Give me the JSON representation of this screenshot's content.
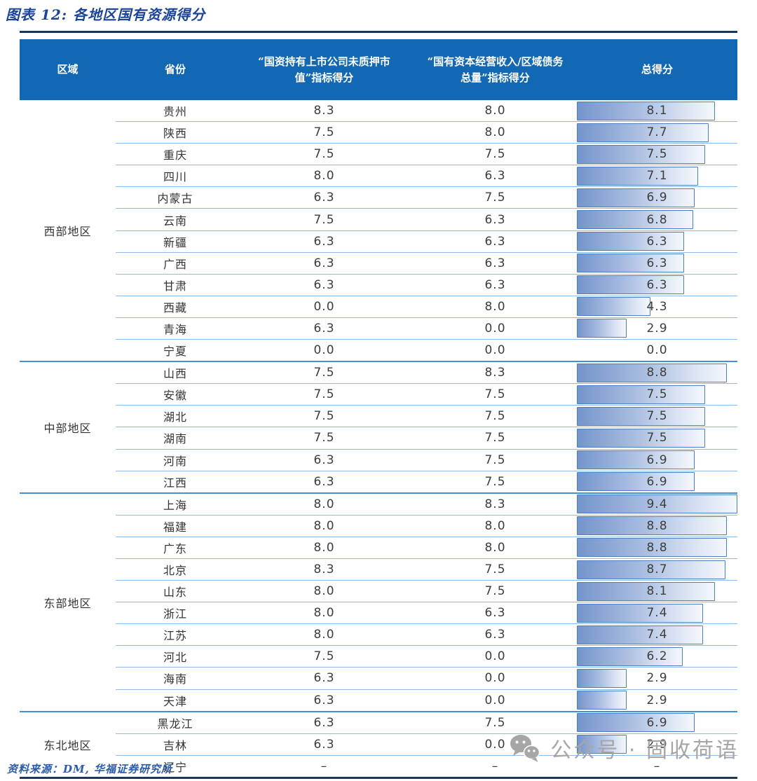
{
  "figure": {
    "title": "图表 12: 各地区国有资源得分",
    "source": "资料来源：DM, 华福证券研究所"
  },
  "table": {
    "headers": {
      "region": "区域",
      "province": "省份",
      "score1_lines": [
        "“国资持有上市公司未质押市",
        "值”指标得分"
      ],
      "score2_lines": [
        "“国有资本经营收入/区域债务",
        "总量”指标得分"
      ],
      "total": "总得分"
    }
  },
  "watermark": {
    "icon": "wechat-icon",
    "label": "公众号 · 固收荷语"
  },
  "colors": {
    "title": "#1B4396",
    "rule": "#17375E",
    "header_bg": "#1268B2",
    "header_text": "#FFFFFF",
    "group_line": "#4690D2",
    "row_line": "#8FBCE6",
    "bar_border": "#4D7DC2",
    "bar_gradient_start": "#7495CB",
    "bar_gradient_end": "#F4F7FC",
    "source_text": "#2A5CAA",
    "watermark": "#A6A6A6"
  },
  "chart_data": {
    "type": "table",
    "title": "图表 12: 各地区国有资源得分",
    "columns": [
      "区域",
      "省份",
      "“国资持有上市公司未质押市值”指标得分",
      "“国有资本经营收入/区域债务总量”指标得分",
      "总得分"
    ],
    "bar_column": "总得分",
    "score_max": 9.4,
    "groups": [
      {
        "region": "西部地区",
        "rows": [
          {
            "province": "贵州",
            "score1": "8.3",
            "score2": "8.0",
            "total": "8.1"
          },
          {
            "province": "陕西",
            "score1": "7.5",
            "score2": "8.0",
            "total": "7.7"
          },
          {
            "province": "重庆",
            "score1": "7.5",
            "score2": "7.5",
            "total": "7.5"
          },
          {
            "province": "四川",
            "score1": "8.0",
            "score2": "6.3",
            "total": "7.1"
          },
          {
            "province": "内蒙古",
            "score1": "6.3",
            "score2": "7.5",
            "total": "6.9"
          },
          {
            "province": "云南",
            "score1": "7.5",
            "score2": "6.3",
            "total": "6.8"
          },
          {
            "province": "新疆",
            "score1": "6.3",
            "score2": "6.3",
            "total": "6.3"
          },
          {
            "province": "广西",
            "score1": "6.3",
            "score2": "6.3",
            "total": "6.3"
          },
          {
            "province": "甘肃",
            "score1": "6.3",
            "score2": "6.3",
            "total": "6.3"
          },
          {
            "province": "西藏",
            "score1": "0.0",
            "score2": "8.0",
            "total": "4.3"
          },
          {
            "province": "青海",
            "score1": "6.3",
            "score2": "0.0",
            "total": "2.9"
          },
          {
            "province": "宁夏",
            "score1": "0.0",
            "score2": "0.0",
            "total": "0.0"
          }
        ]
      },
      {
        "region": "中部地区",
        "rows": [
          {
            "province": "山西",
            "score1": "7.5",
            "score2": "8.3",
            "total": "8.8"
          },
          {
            "province": "安徽",
            "score1": "7.5",
            "score2": "7.5",
            "total": "7.5"
          },
          {
            "province": "湖北",
            "score1": "7.5",
            "score2": "7.5",
            "total": "7.5"
          },
          {
            "province": "湖南",
            "score1": "7.5",
            "score2": "7.5",
            "total": "7.5"
          },
          {
            "province": "河南",
            "score1": "6.3",
            "score2": "7.5",
            "total": "6.9"
          },
          {
            "province": "江西",
            "score1": "6.3",
            "score2": "7.5",
            "total": "6.9"
          }
        ]
      },
      {
        "region": "东部地区",
        "rows": [
          {
            "province": "上海",
            "score1": "8.0",
            "score2": "8.3",
            "total": "9.4"
          },
          {
            "province": "福建",
            "score1": "8.0",
            "score2": "8.0",
            "total": "8.8"
          },
          {
            "province": "广东",
            "score1": "8.0",
            "score2": "8.0",
            "total": "8.8"
          },
          {
            "province": "北京",
            "score1": "8.3",
            "score2": "7.5",
            "total": "8.7"
          },
          {
            "province": "山东",
            "score1": "8.0",
            "score2": "7.5",
            "total": "8.1"
          },
          {
            "province": "浙江",
            "score1": "8.0",
            "score2": "6.3",
            "total": "7.4"
          },
          {
            "province": "江苏",
            "score1": "8.0",
            "score2": "6.3",
            "total": "7.4"
          },
          {
            "province": "河北",
            "score1": "7.5",
            "score2": "0.0",
            "total": "6.2"
          },
          {
            "province": "海南",
            "score1": "6.3",
            "score2": "0.0",
            "total": "2.9"
          },
          {
            "province": "天津",
            "score1": "6.3",
            "score2": "0.0",
            "total": "2.9"
          }
        ]
      },
      {
        "region": "东北地区",
        "rows": [
          {
            "province": "黑龙江",
            "score1": "6.3",
            "score2": "7.5",
            "total": "6.9"
          },
          {
            "province": "吉林",
            "score1": "6.3",
            "score2": "0.0",
            "total": "2.9"
          },
          {
            "province": "辽宁",
            "score1": "–",
            "score2": "–",
            "total": "–"
          }
        ]
      }
    ]
  }
}
